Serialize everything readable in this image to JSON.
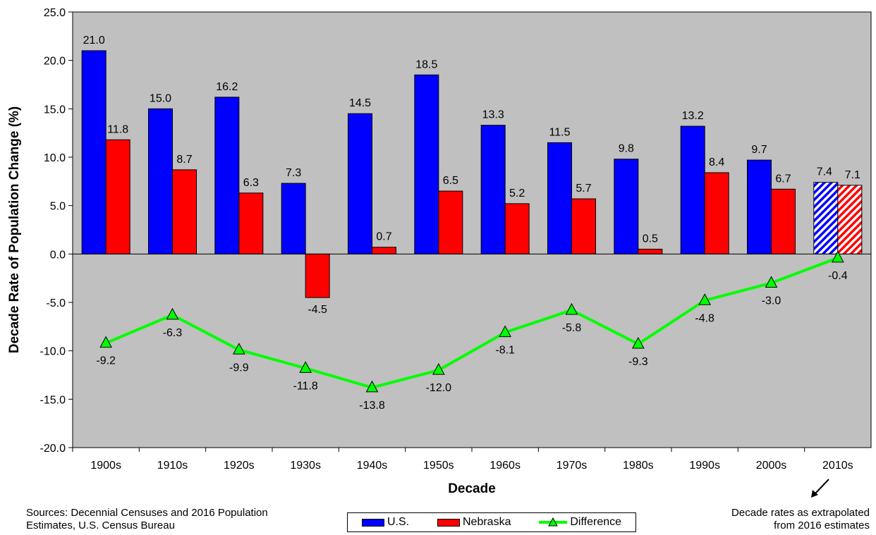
{
  "chart_data": {
    "type": "bar",
    "ylabel": "Decade Rate of Population Change (%)",
    "xlabel": "Decade",
    "ylim": [
      -20,
      25
    ],
    "yticks": [
      "25.0",
      "20.0",
      "15.0",
      "10.0",
      "5.0",
      "0.0",
      "-5.0",
      "-10.0",
      "-15.0",
      "-20.0"
    ],
    "ytick_values": [
      25,
      20,
      15,
      10,
      5,
      0,
      -5,
      -10,
      -15,
      -20
    ],
    "categories": [
      "1900s",
      "1910s",
      "1920s",
      "1930s",
      "1940s",
      "1950s",
      "1960s",
      "1970s",
      "1980s",
      "1990s",
      "2000s",
      "2010s"
    ],
    "series": [
      {
        "name": "U.S.",
        "kind": "bar",
        "color": "#0000FF",
        "values": [
          21.0,
          15.0,
          16.2,
          7.3,
          14.5,
          18.5,
          13.3,
          11.5,
          9.8,
          13.2,
          9.7,
          7.4
        ],
        "labels": [
          "21.0",
          "15.0",
          "16.2",
          "7.3",
          "14.5",
          "18.5",
          "13.3",
          "11.5",
          "9.8",
          "13.2",
          "9.7",
          "7.4"
        ]
      },
      {
        "name": "Nebraska",
        "kind": "bar",
        "color": "#FF0000",
        "values": [
          11.8,
          8.7,
          6.3,
          -4.5,
          0.7,
          6.5,
          5.2,
          5.7,
          0.5,
          8.4,
          6.7,
          7.1
        ],
        "labels": [
          "11.8",
          "8.7",
          "6.3",
          "-4.5",
          "0.7",
          "6.5",
          "5.2",
          "5.7",
          "0.5",
          "8.4",
          "6.7",
          "7.1"
        ]
      },
      {
        "name": "Difference",
        "kind": "line",
        "color": "#00FF00",
        "values": [
          -9.2,
          -6.3,
          -9.9,
          -11.8,
          -13.8,
          -12.0,
          -8.1,
          -5.8,
          -9.3,
          -4.8,
          -3.0,
          -0.4
        ],
        "labels": [
          "-9.2",
          "-6.3",
          "-9.9",
          "-11.8",
          "-13.8",
          "-12.0",
          "-8.1",
          "-5.8",
          "-9.3",
          "-4.8",
          "-3.0",
          "-0.4"
        ]
      }
    ],
    "hatched_categories": [
      "2010s"
    ],
    "plot_background": "#C0C0C0",
    "grid": false,
    "legend_placement": "bottom-center"
  },
  "notes": {
    "source_line1": "Sources: Decennial Censuses and 2016 Population",
    "source_line2": "Estimates, U.S. Census Bureau",
    "extrap_line1": "Decade rates as extrapolated",
    "extrap_line2": "from 2016 estimates"
  },
  "legend": {
    "us": "U.S.",
    "nebraska": "Nebraska",
    "difference": "Difference"
  }
}
